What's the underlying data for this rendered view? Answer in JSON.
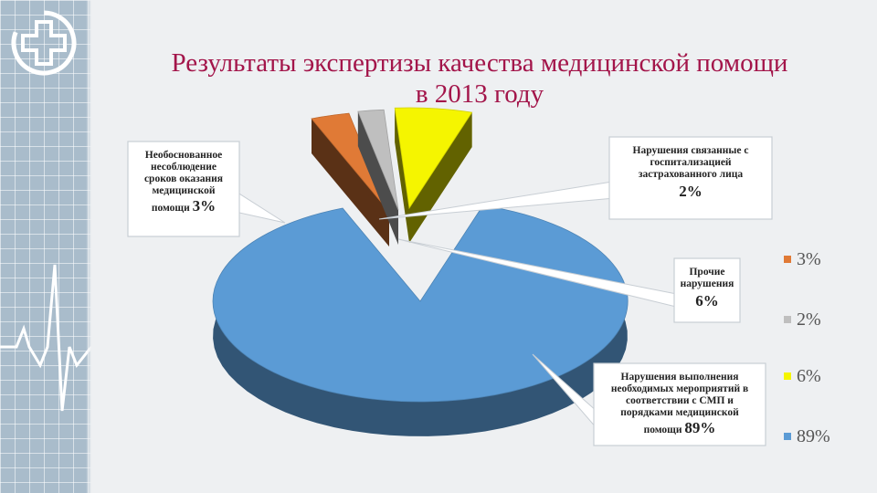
{
  "title_line1": "Результаты экспертизы качества медицинской помощи",
  "title_line2": "в 2013 году",
  "icons": {
    "logo": "medical-cross-logo-icon",
    "pulse": "heartbeat-line-icon"
  },
  "chart_data": {
    "type": "pie",
    "style": "3d-exploded",
    "title": "Результаты экспертизы качества медицинской помощи в 2013 году",
    "categories": [
      "Необоснованное несоблюдение сроков оказания медицинской помощи",
      "Нарушения связанные с госпитализацией застрахованного лица",
      "Прочие нарушения",
      "Нарушения выполнения необходимых мероприятий в соответствии с СМП и порядками медицинской помощи"
    ],
    "values": [
      3,
      2,
      6,
      89
    ],
    "colors": [
      "#e07a36",
      "#bfbfbf",
      "#f5f500",
      "#5b9bd5"
    ],
    "legend": [
      "3%",
      "2%",
      "6%",
      "89%"
    ],
    "legend_position": "right",
    "callouts": [
      {
        "lines": [
          "Необоснованное",
          "несоблюдение",
          "сроков оказания",
          "медицинской"
        ],
        "last_line": "помощи",
        "value": "3%"
      },
      {
        "lines": [
          "Нарушения связанные с",
          "госпитализацией",
          "застрахованного лица"
        ],
        "last_line": "",
        "value": "2%"
      },
      {
        "lines": [
          "Прочие",
          "нарушения"
        ],
        "last_line": "",
        "value": "6%"
      },
      {
        "lines": [
          "Нарушения выполнения",
          "необходимых мероприятий в",
          "соответствии с СМП и",
          "порядками медицинской"
        ],
        "last_line": "помощи",
        "value": "89%"
      }
    ]
  }
}
